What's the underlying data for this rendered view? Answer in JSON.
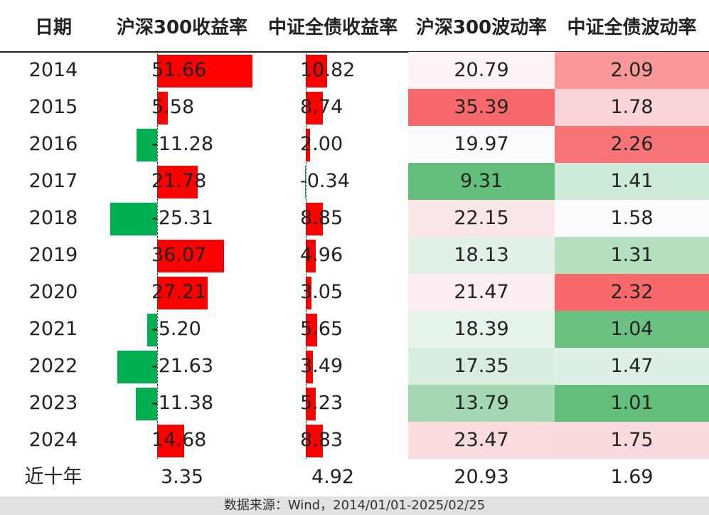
{
  "chart_data": {
    "type": "table",
    "columns": [
      "日期",
      "沪深300收益率",
      "中证全债收益率",
      "沪深300波动率",
      "中证全债波动率"
    ],
    "rows": [
      {
        "label": "2014",
        "csi300_return": 51.66,
        "bond_return": 10.82,
        "csi300_vol": 20.79,
        "bond_vol": 2.09
      },
      {
        "label": "2015",
        "csi300_return": 5.58,
        "bond_return": 8.74,
        "csi300_vol": 35.39,
        "bond_vol": 1.78
      },
      {
        "label": "2016",
        "csi300_return": -11.28,
        "bond_return": 2.0,
        "csi300_vol": 19.97,
        "bond_vol": 2.26
      },
      {
        "label": "2017",
        "csi300_return": 21.78,
        "bond_return": -0.34,
        "csi300_vol": 9.31,
        "bond_vol": 1.41
      },
      {
        "label": "2018",
        "csi300_return": -25.31,
        "bond_return": 8.85,
        "csi300_vol": 22.15,
        "bond_vol": 1.58
      },
      {
        "label": "2019",
        "csi300_return": 36.07,
        "bond_return": 4.96,
        "csi300_vol": 18.13,
        "bond_vol": 1.31
      },
      {
        "label": "2020",
        "csi300_return": 27.21,
        "bond_return": 3.05,
        "csi300_vol": 21.47,
        "bond_vol": 2.32
      },
      {
        "label": "2021",
        "csi300_return": -5.2,
        "bond_return": 5.65,
        "csi300_vol": 18.39,
        "bond_vol": 1.04
      },
      {
        "label": "2022",
        "csi300_return": -21.63,
        "bond_return": 3.49,
        "csi300_vol": 17.35,
        "bond_vol": 1.47
      },
      {
        "label": "2023",
        "csi300_return": -11.38,
        "bond_return": 5.23,
        "csi300_vol": 13.79,
        "bond_vol": 1.01
      },
      {
        "label": "2024",
        "csi300_return": 14.68,
        "bond_return": 8.83,
        "csi300_vol": 23.47,
        "bond_vol": 1.75
      }
    ],
    "summary": {
      "label": "近十年",
      "csi300_return": 3.35,
      "bond_return": 4.92,
      "csi300_vol": 20.93,
      "bond_vol": 1.69
    },
    "colors": {
      "positive_bar": "#ff0000",
      "negative_bar": "#00b050",
      "heat_high": "#f8696b",
      "heat_mid": "#fcfcff",
      "heat_low": "#63be7b"
    }
  },
  "footer": {
    "source": "数据来源：Wind，2014/01/01-2025/02/25"
  }
}
